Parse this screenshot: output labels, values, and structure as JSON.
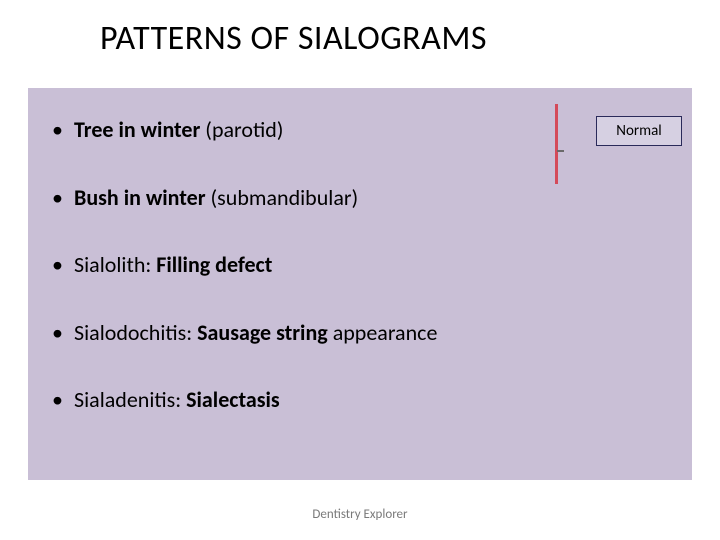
{
  "title": "PATTERNS OF SIALOGRAMS",
  "content_box": {
    "background_color": "#c9bfd6"
  },
  "bullets": [
    {
      "prefix": "",
      "bold": "Tree in winter ",
      "suffix": "(parotid)"
    },
    {
      "prefix": "",
      "bold": "Bush in winter ",
      "suffix": "(submandibular)"
    },
    {
      "prefix": "Sialolith: ",
      "bold": "Filling defect",
      "suffix": ""
    },
    {
      "prefix": "Sialodochitis: ",
      "bold": "Sausage string ",
      "suffix": "appearance"
    },
    {
      "prefix": "Sialadenitis: ",
      "bold": "Sialectasis",
      "suffix": ""
    }
  ],
  "badge": {
    "label": "Normal"
  },
  "decor": {
    "vline_color": "#d44a5a",
    "badge_bg": "#d6d0e2",
    "badge_border": "#2a2a5a"
  },
  "footer": "Dentistry Explorer",
  "typography": {
    "title_fontsize": 34,
    "bullet_fontsize": 22,
    "badge_fontsize": 15,
    "footer_fontsize": 13
  }
}
